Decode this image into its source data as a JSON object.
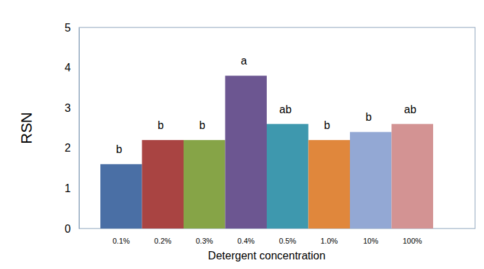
{
  "chart_data": {
    "type": "bar",
    "x_label": "Detergent concentration",
    "y_label": "RSN",
    "categories": [
      "0.1%",
      "0.2%",
      "0.3%",
      "0.4%",
      "0.5%",
      "1.0%",
      "10%",
      "100%"
    ],
    "values": [
      1.6,
      2.2,
      2.2,
      3.8,
      2.6,
      2.2,
      2.4,
      2.6
    ],
    "annotations": [
      "b",
      "b",
      "b",
      "a",
      "ab",
      "b",
      "b",
      "ab"
    ],
    "colors": [
      "#4a6fa5",
      "#a94442",
      "#86a447",
      "#6c5691",
      "#3e98ae",
      "#e0873c",
      "#93a8d4",
      "#d39393"
    ],
    "ylim": [
      0,
      5
    ],
    "yticks": [
      0,
      1,
      2,
      3,
      4,
      5
    ],
    "grid": false
  }
}
